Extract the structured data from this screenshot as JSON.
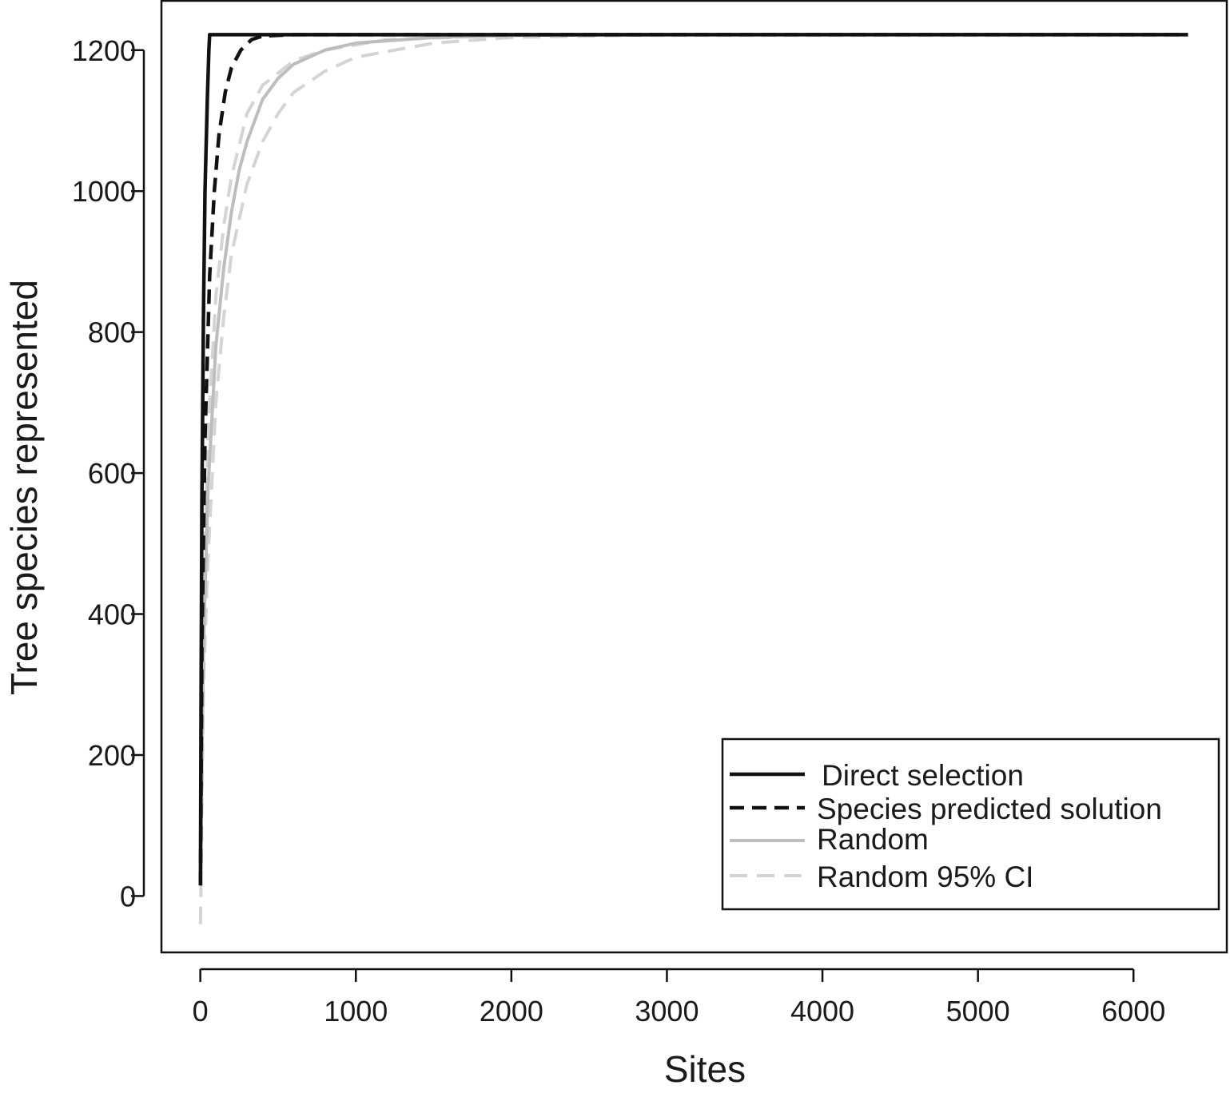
{
  "chart_data": {
    "type": "line",
    "title": "",
    "xlabel": "Sites",
    "ylabel": "Tree species represented",
    "xlim": [
      -250,
      6600
    ],
    "ylim": [
      -80,
      1270
    ],
    "xticks": [
      0,
      1000,
      2000,
      3000,
      4000,
      5000,
      6000
    ],
    "yticks": [
      0,
      200,
      400,
      600,
      800,
      1000,
      1200
    ],
    "grid": false,
    "legend_position": "bottom-right",
    "series": [
      {
        "name": "Direct selection",
        "style": "solid",
        "color": "#111111",
        "x": [
          1,
          5,
          10,
          20,
          30,
          45,
          55,
          60,
          70,
          6350
        ],
        "y": [
          15,
          300,
          560,
          820,
          1000,
          1130,
          1200,
          1222,
          1222,
          1222
        ]
      },
      {
        "name": "Species predicted solution",
        "style": "dashed",
        "color": "#111111",
        "x": [
          1,
          10,
          30,
          60,
          90,
          120,
          160,
          200,
          260,
          330,
          400,
          600,
          6350
        ],
        "y": [
          15,
          350,
          650,
          880,
          1000,
          1080,
          1140,
          1175,
          1200,
          1215,
          1220,
          1222,
          1222
        ]
      },
      {
        "name": "Random",
        "style": "solid",
        "color": "#bdbdbd",
        "x": [
          1,
          20,
          50,
          100,
          150,
          200,
          250,
          300,
          400,
          500,
          600,
          800,
          1000,
          1500,
          2000,
          3000,
          6350
        ],
        "y": [
          15,
          350,
          580,
          780,
          890,
          970,
          1030,
          1070,
          1130,
          1160,
          1180,
          1200,
          1210,
          1218,
          1221,
          1222,
          1222
        ]
      },
      {
        "name": "Random 95% CI",
        "style": "dashed",
        "color": "#d4d4d4",
        "upper": {
          "x": [
            1,
            20,
            50,
            100,
            150,
            200,
            300,
            400,
            600,
            800,
            1200,
            2000,
            3000,
            6350
          ],
          "y": [
            30,
            420,
            660,
            850,
            950,
            1020,
            1110,
            1150,
            1185,
            1200,
            1215,
            1221,
            1222,
            1222
          ]
        },
        "lower": {
          "x": [
            1,
            20,
            50,
            100,
            150,
            200,
            300,
            400,
            500,
            600,
            800,
            1000,
            1500,
            2000,
            3000,
            6350
          ],
          "y": [
            -40,
            300,
            480,
            700,
            820,
            910,
            1010,
            1070,
            1110,
            1140,
            1170,
            1190,
            1210,
            1218,
            1222,
            1222
          ]
        }
      }
    ]
  }
}
